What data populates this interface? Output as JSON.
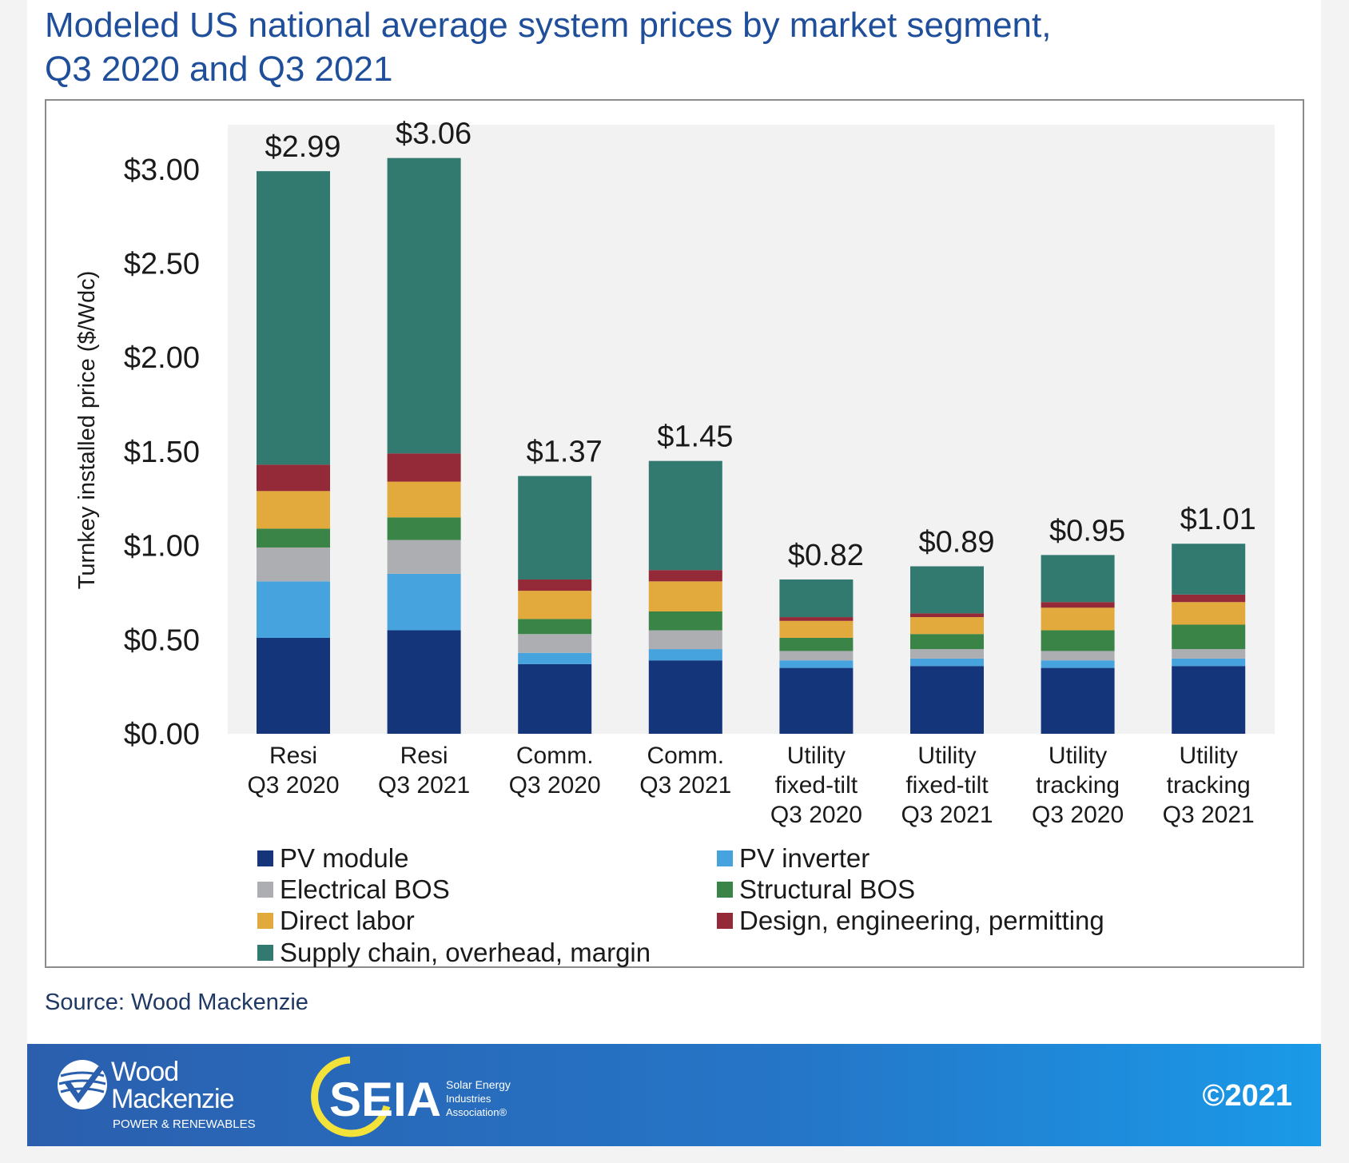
{
  "title_line1": "Modeled US national average system prices by market segment,",
  "title_line2": "Q3 2020 and Q3 2021",
  "source": "Source: Wood Mackenzie",
  "footer": {
    "wood_mackenzie_logo": [
      "Wood",
      "Mackenzie"
    ],
    "wood_mackenzie_sub": "POWER & RENEWABLES",
    "seia_logo": "SEIA",
    "seia_sub": [
      "Solar Energy",
      "Industries",
      "Association®"
    ],
    "copyright": "©2021"
  },
  "chart_data": {
    "type": "bar",
    "stacked": true,
    "title": "Modeled US national average system prices by market segment, Q3 2020 and Q3 2021",
    "ylabel": "Turnkey installed price ($/Wdc)",
    "xlabel": "",
    "ylim": [
      0,
      3.25
    ],
    "yticks": [
      "$0.00",
      "$0.50",
      "$1.00",
      "$1.50",
      "$2.00",
      "$2.50",
      "$3.00"
    ],
    "ytick_values": [
      0,
      0.5,
      1,
      1.5,
      2,
      2.5,
      3
    ],
    "grid": false,
    "legend_position": "bottom",
    "categories": [
      [
        "Resi",
        "Q3 2020"
      ],
      [
        "Resi",
        "Q3 2021"
      ],
      [
        "Comm.",
        "Q3 2020"
      ],
      [
        "Comm.",
        "Q3 2021"
      ],
      [
        "Utility",
        "fixed-tilt",
        "Q3 2020"
      ],
      [
        "Utility",
        "fixed-tilt",
        "Q3 2021"
      ],
      [
        "Utility",
        "tracking",
        "Q3 2020"
      ],
      [
        "Utility",
        "tracking",
        "Q3 2021"
      ]
    ],
    "totals": [
      2.99,
      3.06,
      1.37,
      1.45,
      0.82,
      0.89,
      0.95,
      1.01
    ],
    "total_labels": [
      "$2.99",
      "$3.06",
      "$1.37",
      "$1.45",
      "$0.82",
      "$0.89",
      "$0.95",
      "$1.01"
    ],
    "series": [
      {
        "name": "PV module",
        "color": "#14357a",
        "values": [
          0.51,
          0.55,
          0.37,
          0.39,
          0.35,
          0.36,
          0.35,
          0.36
        ]
      },
      {
        "name": "PV inverter",
        "color": "#47a3de",
        "values": [
          0.3,
          0.3,
          0.06,
          0.06,
          0.04,
          0.04,
          0.04,
          0.04
        ]
      },
      {
        "name": "Electrical BOS",
        "color": "#acaeb1",
        "values": [
          0.18,
          0.18,
          0.1,
          0.1,
          0.05,
          0.05,
          0.05,
          0.05
        ]
      },
      {
        "name": "Structural BOS",
        "color": "#3a8447",
        "values": [
          0.1,
          0.12,
          0.08,
          0.1,
          0.07,
          0.08,
          0.11,
          0.13
        ]
      },
      {
        "name": "Direct labor",
        "color": "#e2a93c",
        "values": [
          0.2,
          0.19,
          0.15,
          0.16,
          0.09,
          0.09,
          0.12,
          0.12
        ]
      },
      {
        "name": "Design, engineering, permitting",
        "color": "#942a37",
        "values": [
          0.14,
          0.15,
          0.06,
          0.06,
          0.02,
          0.02,
          0.03,
          0.04
        ]
      },
      {
        "name": "Supply chain, overhead, margin",
        "color": "#327a70",
        "values": [
          1.56,
          1.57,
          0.55,
          0.58,
          0.2,
          0.25,
          0.25,
          0.27
        ]
      }
    ],
    "legend_order": [
      0,
      1,
      2,
      3,
      4,
      5,
      6
    ]
  }
}
